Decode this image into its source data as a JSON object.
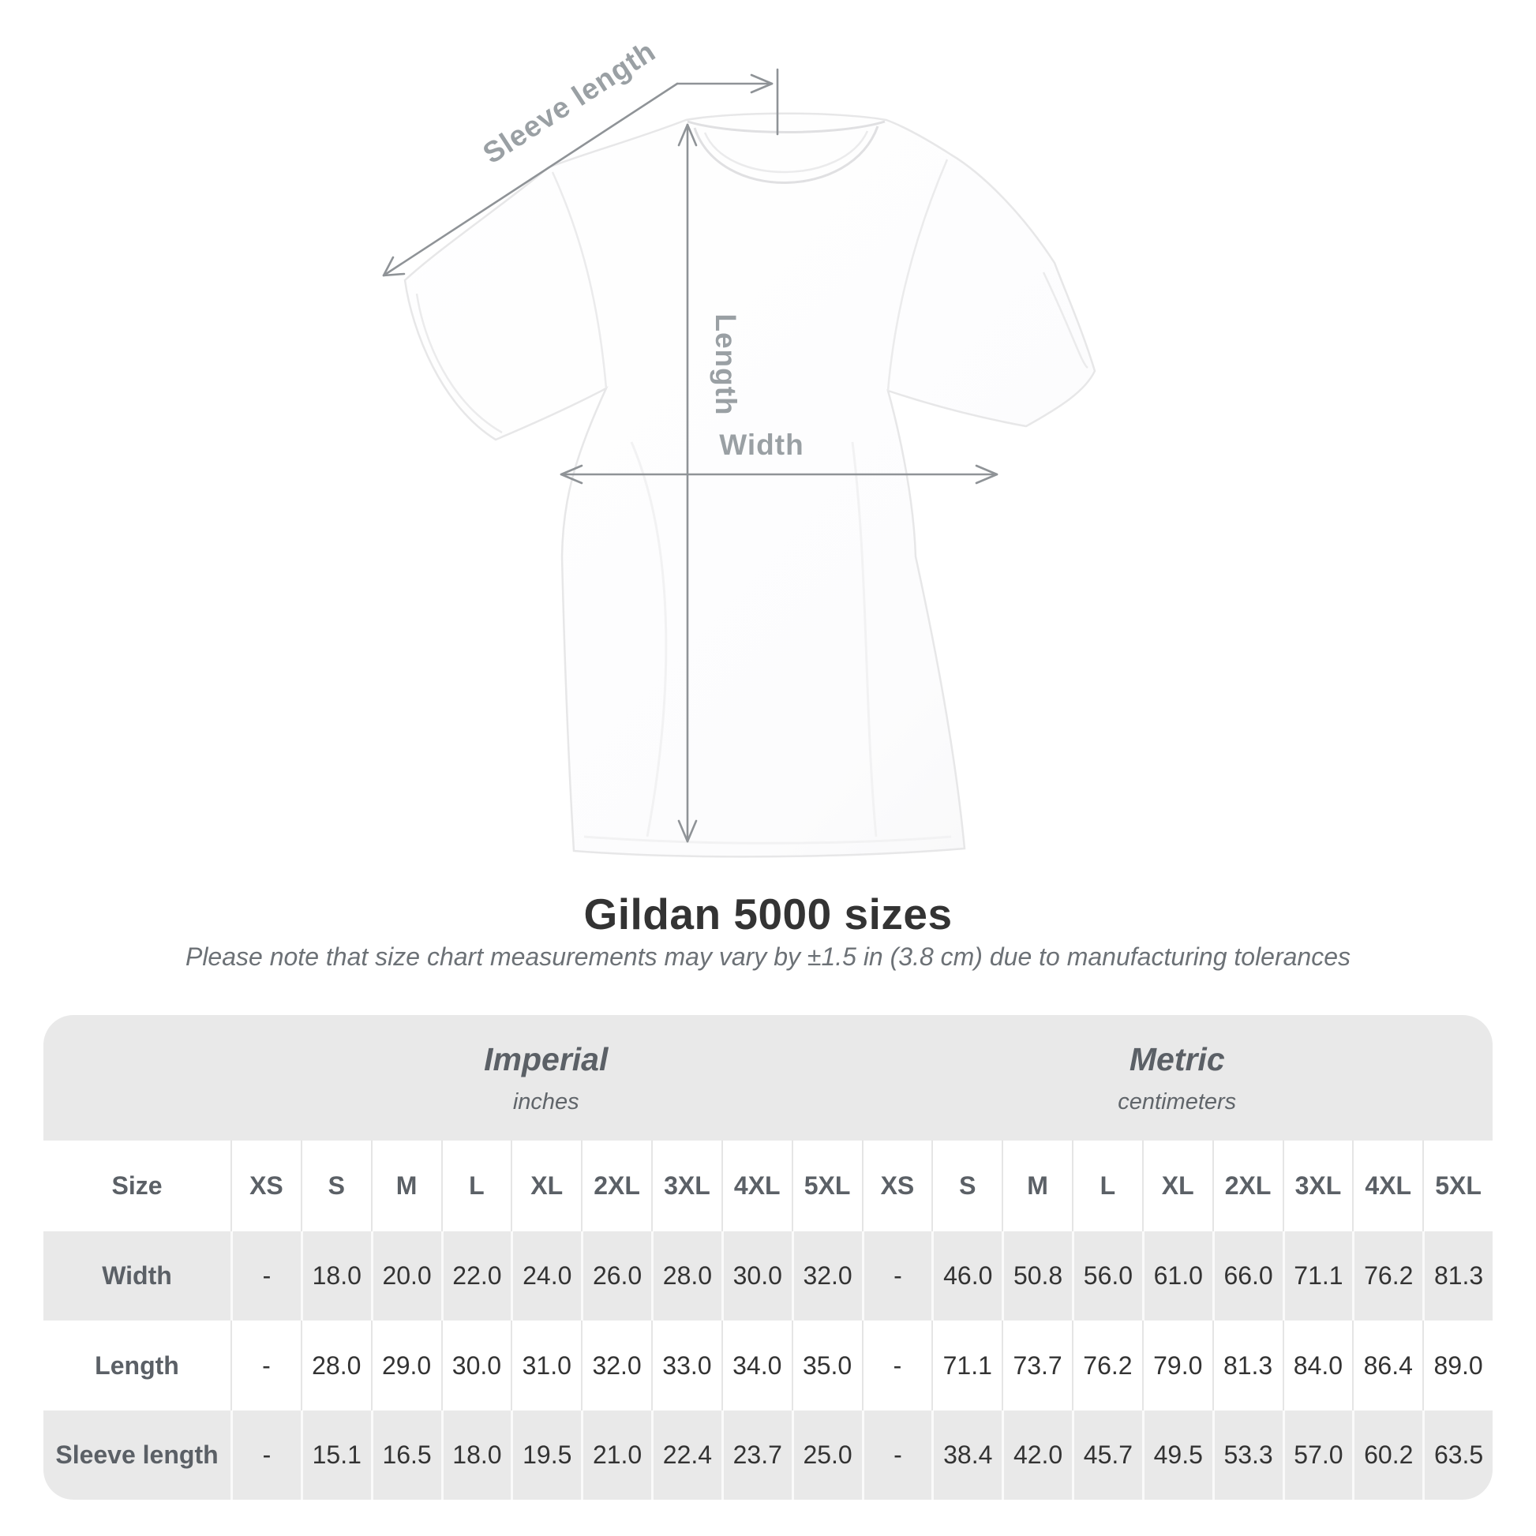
{
  "diagram": {
    "labels": {
      "sleeve_length": "Sleeve length",
      "length": "Length",
      "width": "Width"
    }
  },
  "title": "Gildan 5000 sizes",
  "subtitle": "Please note that size chart measurements may vary by ±1.5 in (3.8 cm) due to manufacturing tolerances",
  "table": {
    "size_header": "Size",
    "unit_systems": [
      {
        "name": "Imperial",
        "unit": "inches"
      },
      {
        "name": "Metric",
        "unit": "centimeters"
      }
    ],
    "sizes": [
      "XS",
      "S",
      "M",
      "L",
      "XL",
      "2XL",
      "3XL",
      "4XL",
      "5XL"
    ],
    "rows": [
      {
        "label": "Width",
        "imperial": [
          "-",
          "18.0",
          "20.0",
          "22.0",
          "24.0",
          "26.0",
          "28.0",
          "30.0",
          "32.0"
        ],
        "metric": [
          "-",
          "46.0",
          "50.8",
          "56.0",
          "61.0",
          "66.0",
          "71.1",
          "76.2",
          "81.3"
        ]
      },
      {
        "label": "Length",
        "imperial": [
          "-",
          "28.0",
          "29.0",
          "30.0",
          "31.0",
          "32.0",
          "33.0",
          "34.0",
          "35.0"
        ],
        "metric": [
          "-",
          "71.1",
          "73.7",
          "76.2",
          "79.0",
          "81.3",
          "84.0",
          "86.4",
          "89.0"
        ]
      },
      {
        "label": "Sleeve length",
        "imperial": [
          "-",
          "15.1",
          "16.5",
          "18.0",
          "19.5",
          "21.0",
          "22.4",
          "23.7",
          "25.0"
        ],
        "metric": [
          "-",
          "38.4",
          "42.0",
          "45.7",
          "49.5",
          "53.3",
          "57.0",
          "60.2",
          "63.5"
        ]
      }
    ]
  },
  "colors": {
    "table_band": "#e9e9e9",
    "value_text": "#333333",
    "label_text": "#5b6066",
    "measure_line": "#8f9397",
    "measure_label": "#9aa0a4"
  },
  "chart_data": {
    "type": "table",
    "title": "Gildan 5000 sizes",
    "note": "Please note that size chart measurements may vary by ±1.5 in (3.8 cm) due to manufacturing tolerances",
    "column_groups": [
      {
        "name": "Imperial",
        "unit": "inches",
        "columns": [
          "XS",
          "S",
          "M",
          "L",
          "XL",
          "2XL",
          "3XL",
          "4XL",
          "5XL"
        ]
      },
      {
        "name": "Metric",
        "unit": "centimeters",
        "columns": [
          "XS",
          "S",
          "M",
          "L",
          "XL",
          "2XL",
          "3XL",
          "4XL",
          "5XL"
        ]
      }
    ],
    "rows": [
      {
        "measure": "Width",
        "imperial_in": [
          null,
          18.0,
          20.0,
          22.0,
          24.0,
          26.0,
          28.0,
          30.0,
          32.0
        ],
        "metric_cm": [
          null,
          46.0,
          50.8,
          56.0,
          61.0,
          66.0,
          71.1,
          76.2,
          81.3
        ]
      },
      {
        "measure": "Length",
        "imperial_in": [
          null,
          28.0,
          29.0,
          30.0,
          31.0,
          32.0,
          33.0,
          34.0,
          35.0
        ],
        "metric_cm": [
          null,
          71.1,
          73.7,
          76.2,
          79.0,
          81.3,
          84.0,
          86.4,
          89.0
        ]
      },
      {
        "measure": "Sleeve length",
        "imperial_in": [
          null,
          15.1,
          16.5,
          18.0,
          19.5,
          21.0,
          22.4,
          23.7,
          25.0
        ],
        "metric_cm": [
          null,
          38.4,
          42.0,
          45.7,
          49.5,
          53.3,
          57.0,
          60.2,
          63.5
        ]
      }
    ]
  }
}
